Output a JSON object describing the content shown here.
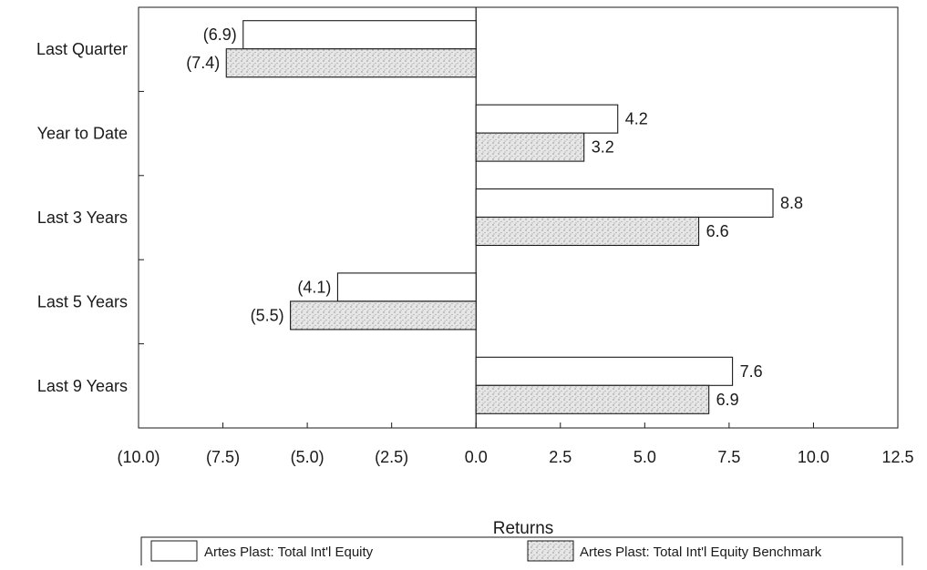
{
  "chart_data": {
    "type": "bar",
    "orientation": "horizontal",
    "categories": [
      "Last Quarter",
      "Year to Date",
      "Last 3 Years",
      "Last 5 Years",
      "Last 9 Years"
    ],
    "series": [
      {
        "name": "Artes Plast: Total Int'l Equity",
        "values": [
          -6.9,
          4.2,
          8.8,
          -4.1,
          7.6
        ],
        "labels": [
          "(6.9)",
          "4.2",
          "8.8",
          "(4.1)",
          "7.6"
        ],
        "fill": "#ffffff",
        "pattern": "none"
      },
      {
        "name": "Artes Plast: Total Int'l Equity Benchmark",
        "values": [
          -7.4,
          3.2,
          6.6,
          -5.5,
          6.9
        ],
        "labels": [
          "(7.4)",
          "3.2",
          "6.6",
          "(5.5)",
          "6.9"
        ],
        "fill": "#e4e4e4",
        "pattern": "stipple"
      }
    ],
    "xlabel": "Returns",
    "ylabel": "",
    "title": "",
    "xlim": [
      -10,
      12.5
    ],
    "x_ticks": [
      -10,
      -7.5,
      -5,
      -2.5,
      0,
      2.5,
      5,
      7.5,
      10,
      12.5
    ],
    "x_tick_labels": [
      "(10.0)",
      "(7.5)",
      "(5.0)",
      "(2.5)",
      "0.0",
      "2.5",
      "5.0",
      "7.5",
      "10.0",
      "12.5"
    ],
    "grid": false,
    "legend_position": "bottom",
    "colors": {
      "outline": "#1a1a1a",
      "stipple_base": "#e6e6e6",
      "stipple_dot": "#8a8a8a"
    }
  }
}
